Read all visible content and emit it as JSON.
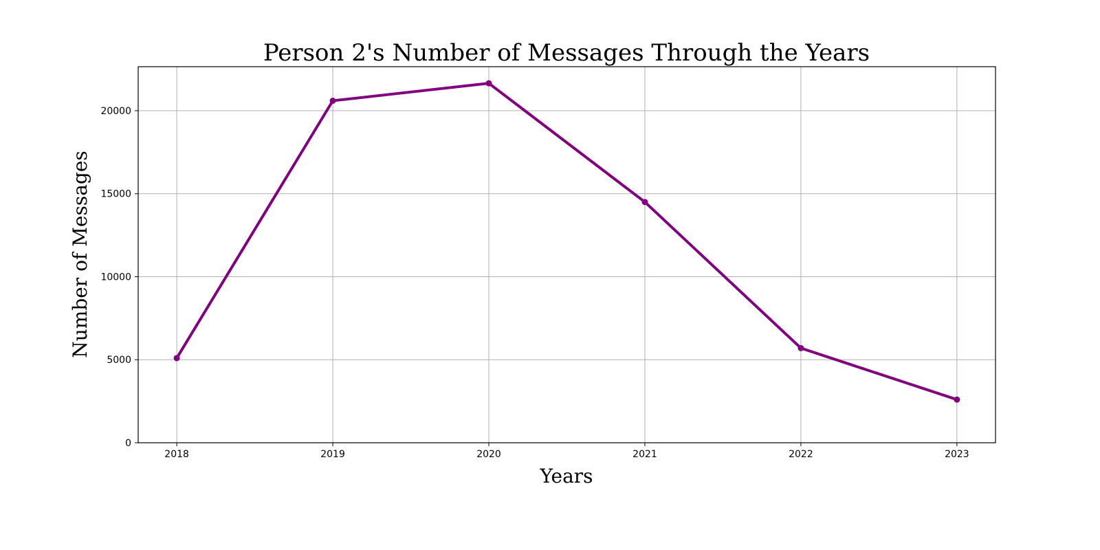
{
  "chart_data": {
    "type": "line",
    "title": "Person 2's Number of Messages Through the Years",
    "xlabel": "Years",
    "ylabel": "Number of Messages",
    "x": [
      "2018",
      "2019",
      "2020",
      "2021",
      "2022",
      "2023"
    ],
    "series": [
      {
        "values": [
          5100,
          20600,
          21650,
          14500,
          5700,
          2600
        ],
        "color": "#800080",
        "marker": "circle"
      }
    ],
    "ylim": [
      0,
      22650
    ],
    "yticks": [
      0,
      5000,
      10000,
      15000,
      20000
    ],
    "grid": true,
    "legend": false
  }
}
